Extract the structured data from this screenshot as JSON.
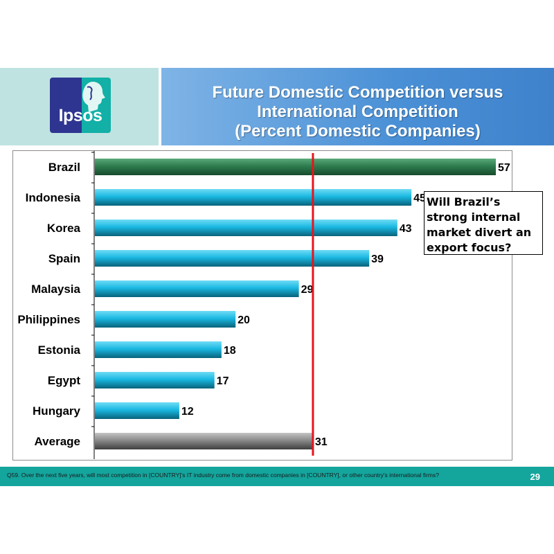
{
  "header": {
    "logo_text": "Ipsos",
    "title_lines": [
      "Future Domestic  Competition versus",
      "International Competition",
      "(Percent Domestic Companies)"
    ]
  },
  "chart_data": {
    "type": "bar",
    "orientation": "horizontal",
    "categories": [
      "Brazil",
      "Indonesia",
      "Korea",
      "Spain",
      "Malaysia",
      "Philippines",
      "Estonia",
      "Egypt",
      "Hungary",
      "Average"
    ],
    "values": [
      57,
      45,
      43,
      39,
      29,
      20,
      18,
      17,
      12,
      31
    ],
    "data_labels": [
      "57",
      "45",
      "43",
      "39",
      "29",
      "20",
      "18",
      "17",
      "12",
      "31"
    ],
    "xlim": [
      0,
      57
    ],
    "reference_line": {
      "value": 31,
      "color": "#e8141b"
    },
    "colors": {
      "highlight": "#2e7d4f",
      "default": "#1ab8e2",
      "average": "#8a8a8a"
    },
    "highlight_category": "Brazil",
    "average_category": "Average",
    "grid": false
  },
  "callout": {
    "lines": [
      "Will Brazil’s",
      "strong internal",
      "market divert an",
      "export focus?"
    ]
  },
  "footer": {
    "footnote": "Q59. Over the next five years, will most competition in [COUNTRY]'s IT industry come from domestic companies in [COUNTRY], or other country's international firms?",
    "page_number": "29"
  }
}
